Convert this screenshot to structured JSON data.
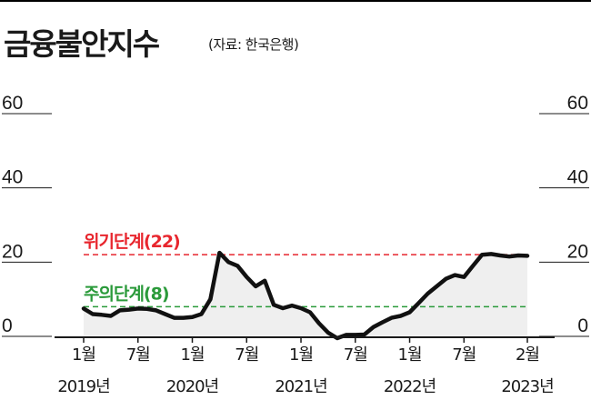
{
  "title": "금융불안지수",
  "source": "(자료: 한국은행)",
  "chart_data": {
    "type": "line",
    "title": "금융불안지수",
    "ylim": [
      0,
      60
    ],
    "yticks": [
      0,
      20,
      40,
      60
    ],
    "grid": false,
    "x_ticks": [
      {
        "idx": 0,
        "month": "1월",
        "year": "2019년"
      },
      {
        "idx": 6,
        "month": "7월",
        "year": ""
      },
      {
        "idx": 12,
        "month": "1월",
        "year": "2020년"
      },
      {
        "idx": 18,
        "month": "7월",
        "year": ""
      },
      {
        "idx": 24,
        "month": "1월",
        "year": "2021년"
      },
      {
        "idx": 30,
        "month": "7월",
        "year": ""
      },
      {
        "idx": 36,
        "month": "1월",
        "year": "2022년"
      },
      {
        "idx": 42,
        "month": "7월",
        "year": ""
      },
      {
        "idx": 49,
        "month": "2월",
        "year": "2023년"
      }
    ],
    "series": [
      {
        "values": [
          7.5,
          6,
          5.8,
          5.5,
          7,
          7.2,
          7.5,
          7.4,
          7,
          6,
          5,
          5,
          5.2,
          6,
          10,
          22.5,
          20,
          19,
          16,
          13.5,
          15,
          8.5,
          7.6,
          8.3,
          7.6,
          6.5,
          3.5,
          1,
          -0.5,
          0.4,
          0.4,
          0.5,
          2.5,
          3.8,
          5,
          5.5,
          6.5,
          9,
          11.5,
          13.5,
          15.5,
          16.5,
          16,
          19,
          22,
          22.2,
          21.8,
          21.5,
          21.8,
          21.7
        ]
      }
    ],
    "reference_lines": [
      {
        "value": 22,
        "label": "위기단계(22)",
        "color": "#e8262e"
      },
      {
        "value": 8,
        "label": "주의단계(8)",
        "color": "#2a9a3a"
      }
    ]
  }
}
